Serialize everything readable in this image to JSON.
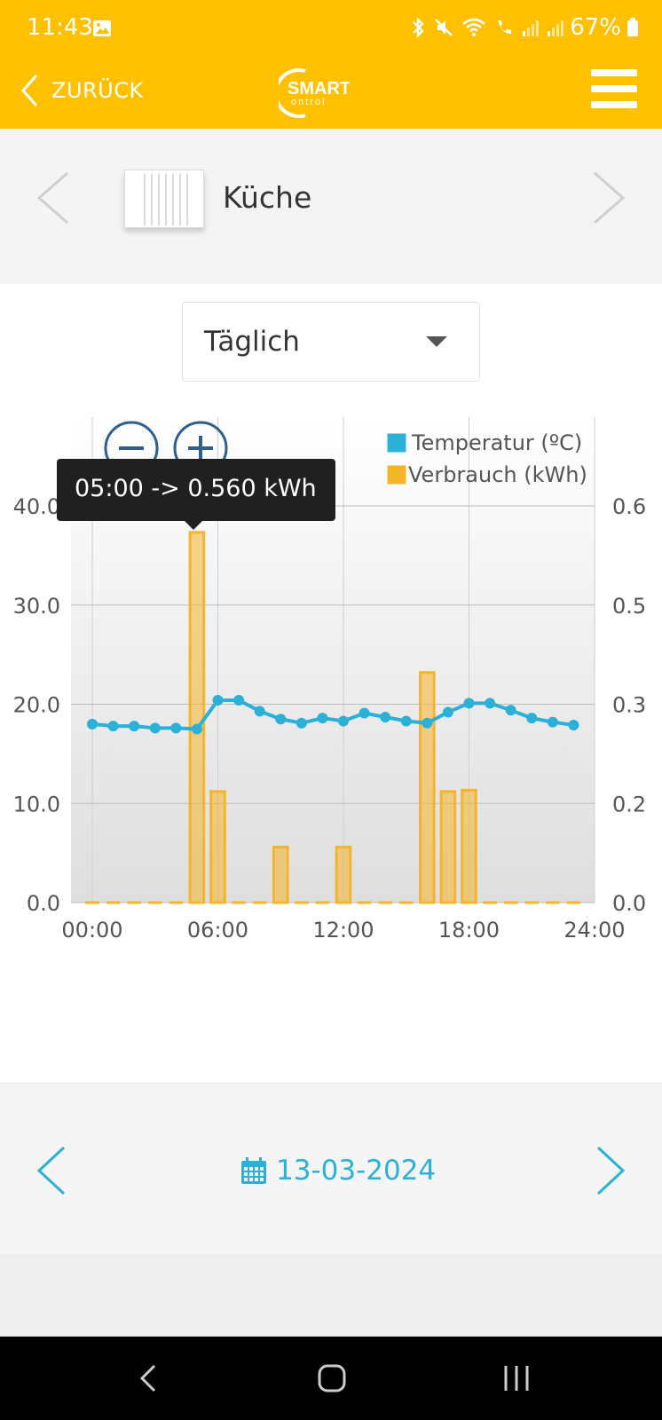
{
  "status_bar": {
    "time": "11:43",
    "battery": "67%",
    "icons": [
      "image-icon",
      "bluetooth-icon",
      "mute-icon",
      "wifi-icon",
      "wifi-call-icon",
      "signal-icon",
      "signal-icon",
      "battery-icon"
    ]
  },
  "app_bar": {
    "back_label": "ZURÜCK",
    "logo_text_top": "SMART",
    "logo_text_bottom": "ontrol",
    "menu_icon": "hamburger-menu-icon"
  },
  "device": {
    "name": "Küche",
    "icon": "radiator-icon"
  },
  "period_select": {
    "selected": "Täglich"
  },
  "chart_controls": {
    "zoom_out_icon": "zoom-out-icon",
    "zoom_in_icon": "zoom-in-icon"
  },
  "tooltip": {
    "text": "05:00 -> 0.560 kWh"
  },
  "chart_data": {
    "type": "bar+line",
    "x_ticks": [
      "00:00",
      "06:00",
      "12:00",
      "18:00",
      "24:00"
    ],
    "y_left_ticks": [
      "0.0",
      "10.0",
      "20.0",
      "30.0",
      "40.0"
    ],
    "y_right_ticks": [
      "0.0",
      "0.2",
      "0.3",
      "0.5",
      "0.6"
    ],
    "y_left_range": [
      0,
      40
    ],
    "y_right_range": [
      0,
      0.6
    ],
    "grid": true,
    "legend_position": "top-right",
    "series": [
      {
        "name": "Temperatur (ºC)",
        "axis": "left",
        "type": "line",
        "color": "#2bb0d8",
        "x": [
          0,
          1,
          2,
          3,
          4,
          5,
          6,
          7,
          8,
          9,
          10,
          11,
          12,
          13,
          14,
          15,
          16,
          17,
          18,
          19,
          20,
          21,
          22,
          23
        ],
        "values": [
          18.0,
          17.8,
          17.8,
          17.6,
          17.6,
          17.5,
          20.4,
          20.4,
          19.3,
          18.5,
          18.1,
          18.6,
          18.3,
          19.1,
          18.7,
          18.3,
          18.1,
          19.2,
          20.1,
          20.1,
          19.4,
          18.6,
          18.2,
          17.9
        ]
      },
      {
        "name": "Verbrauch (kWh)",
        "axis": "right",
        "type": "bar",
        "color": "#f5b52a",
        "x": [
          0,
          1,
          2,
          3,
          4,
          5,
          6,
          7,
          8,
          9,
          10,
          11,
          12,
          13,
          14,
          15,
          16,
          17,
          18,
          19,
          20,
          21,
          22,
          23
        ],
        "values": [
          0,
          0,
          0,
          0,
          0,
          0.56,
          0.168,
          0,
          0,
          0.084,
          0,
          0,
          0.084,
          0,
          0,
          0,
          0.348,
          0.168,
          0.17,
          0,
          0,
          0,
          0,
          0
        ]
      }
    ]
  },
  "date_bar": {
    "date": "13-03-2024",
    "calendar_icon": "calendar-icon"
  },
  "nav_bar": {
    "back": "back-icon",
    "home": "home-icon",
    "recents": "recents-icon"
  }
}
